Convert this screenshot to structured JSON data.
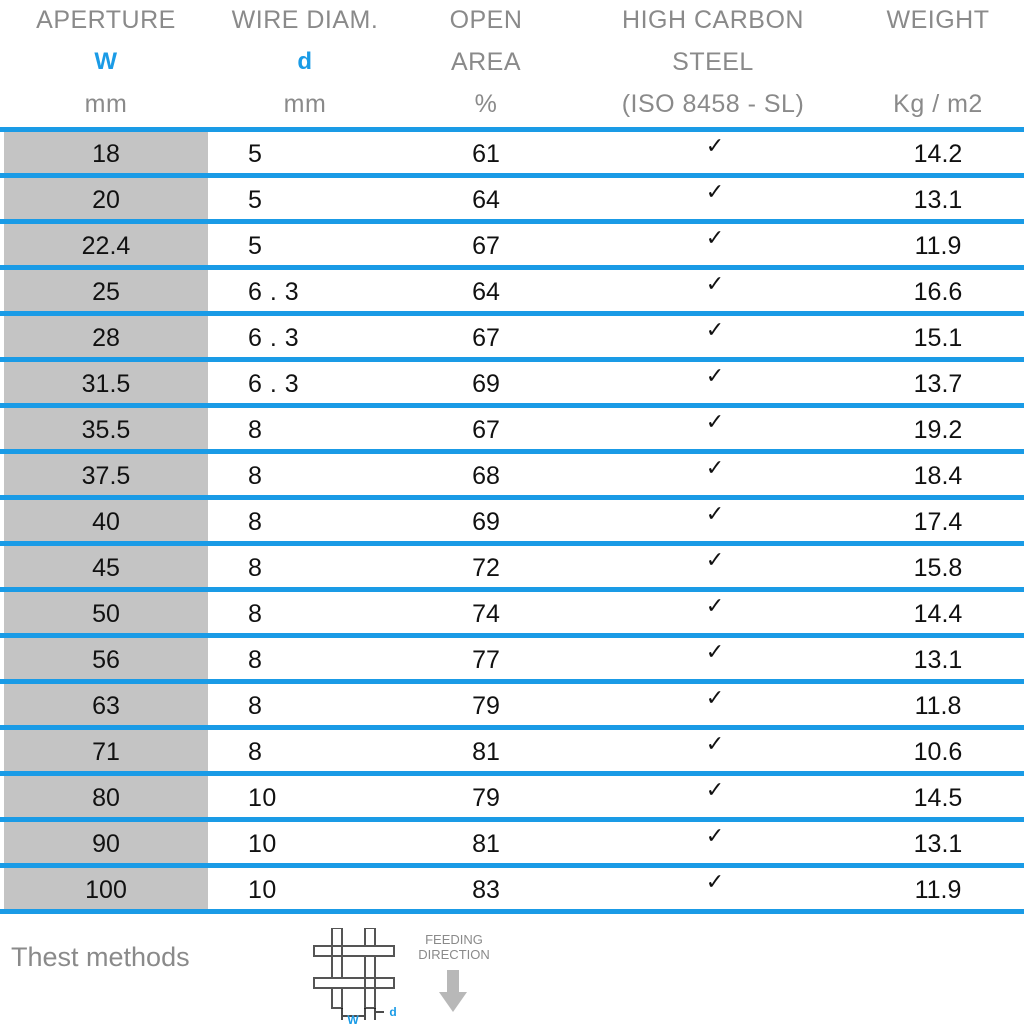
{
  "headers": [
    {
      "line1": "APERTURE",
      "line2": "W",
      "line3": "mm"
    },
    {
      "line1": "WIRE DIAM.",
      "line2": "d",
      "line3": "mm"
    },
    {
      "line1": "OPEN",
      "line2": "AREA",
      "line3": "%"
    },
    {
      "line1": "HIGH CARBON",
      "line2": "STEEL",
      "line3": "(ISO 8458 - SL)"
    },
    {
      "line1": "WEIGHT",
      "line2": "",
      "line3": "Kg / m2"
    }
  ],
  "rows": [
    {
      "aperture": "18",
      "wire": "5",
      "open": "61",
      "steel": "✓",
      "weight": "14.2"
    },
    {
      "aperture": "20",
      "wire": "5",
      "open": "64",
      "steel": "✓",
      "weight": "13.1"
    },
    {
      "aperture": "22.4",
      "wire": "5",
      "open": "67",
      "steel": "✓",
      "weight": "11.9"
    },
    {
      "aperture": "25",
      "wire": "6 . 3",
      "open": "64",
      "steel": "✓",
      "weight": "16.6"
    },
    {
      "aperture": "28",
      "wire": "6 . 3",
      "open": "67",
      "steel": "✓",
      "weight": "15.1"
    },
    {
      "aperture": "31.5",
      "wire": "6 . 3",
      "open": "69",
      "steel": "✓",
      "weight": "13.7"
    },
    {
      "aperture": "35.5",
      "wire": "8",
      "open": "67",
      "steel": "✓",
      "weight": "19.2"
    },
    {
      "aperture": "37.5",
      "wire": "8",
      "open": "68",
      "steel": "✓",
      "weight": "18.4"
    },
    {
      "aperture": "40",
      "wire": "8",
      "open": "69",
      "steel": "✓",
      "weight": "17.4"
    },
    {
      "aperture": "45",
      "wire": "8",
      "open": "72",
      "steel": "✓",
      "weight": "15.8"
    },
    {
      "aperture": "50",
      "wire": "8",
      "open": "74",
      "steel": "✓",
      "weight": "14.4"
    },
    {
      "aperture": "56",
      "wire": "8",
      "open": "77",
      "steel": "✓",
      "weight": "13.1"
    },
    {
      "aperture": "63",
      "wire": "8",
      "open": "79",
      "steel": "✓",
      "weight": "11.8"
    },
    {
      "aperture": "71",
      "wire": "8",
      "open": "81",
      "steel": "✓",
      "weight": "10.6"
    },
    {
      "aperture": "80",
      "wire": "10",
      "open": "79",
      "steel": "✓",
      "weight": "14.5"
    },
    {
      "aperture": "90",
      "wire": "10",
      "open": "81",
      "steel": "✓",
      "weight": "13.1"
    },
    {
      "aperture": "100",
      "wire": "10",
      "open": "83",
      "steel": "✓",
      "weight": "11.9"
    }
  ],
  "footer": {
    "test_label": "Thest methods",
    "diagram_w": "W",
    "diagram_d": "d",
    "feeding_line1": "FEEDING",
    "feeding_line2": "DIRECTION",
    "diagram_icon": "wire-mesh-icon",
    "arrow_icon": "down-arrow-icon"
  },
  "colors": {
    "accent": "#1a9be6",
    "first_column_fill": "#c4c4c4",
    "header_text": "#8a8a8a"
  }
}
